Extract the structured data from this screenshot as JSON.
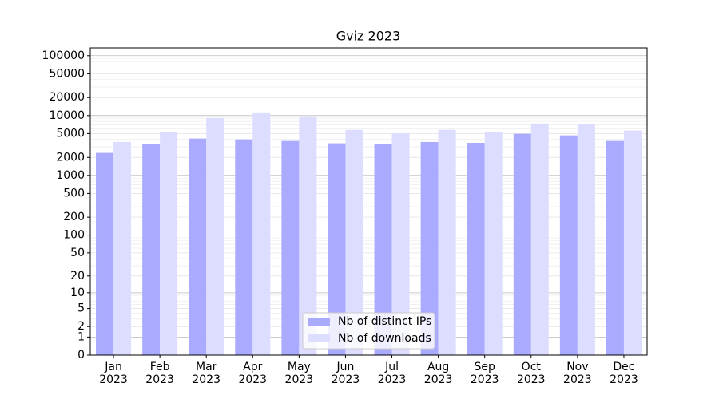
{
  "chart_data": {
    "type": "bar",
    "title": "Gviz 2023",
    "categories": [
      "Jan\n2023",
      "Feb\n2023",
      "Mar\n2023",
      "Apr\n2023",
      "May\n2023",
      "Jun\n2023",
      "Jul\n2023",
      "Aug\n2023",
      "Sep\n2023",
      "Oct\n2023",
      "Nov\n2023",
      "Dec\n2023"
    ],
    "series": [
      {
        "name": "Nb of distinct IPs",
        "color": "#aaaaff",
        "values": [
          2380,
          3340,
          4130,
          4000,
          3770,
          3440,
          3340,
          3620,
          3500,
          4960,
          4670,
          3770
        ]
      },
      {
        "name": "Nb of downloads",
        "color": "#ddddff",
        "values": [
          3620,
          5270,
          9120,
          11300,
          9700,
          5780,
          5070,
          5780,
          5270,
          7380,
          7200,
          5620
        ]
      }
    ],
    "yscale": "log1p",
    "ylim": [
      0,
      135000
    ],
    "yticks": [
      0,
      1,
      2,
      5,
      10,
      20,
      50,
      100,
      200,
      500,
      1000,
      2000,
      5000,
      10000,
      20000,
      50000,
      100000
    ],
    "grid": true,
    "legend": "lower center"
  }
}
